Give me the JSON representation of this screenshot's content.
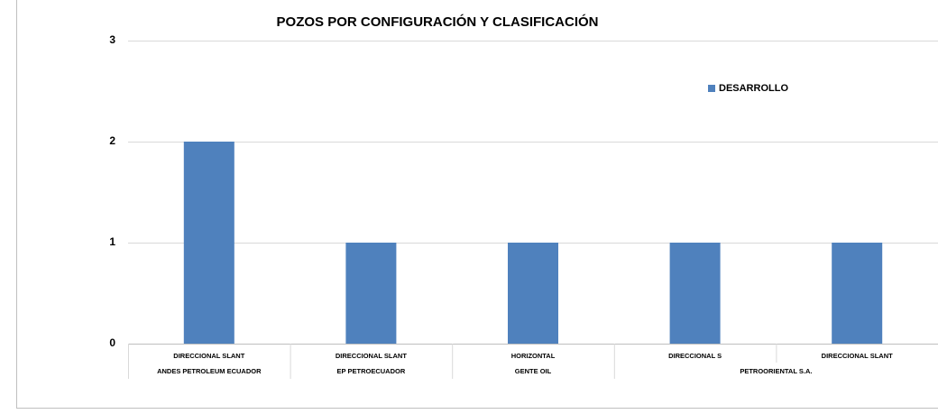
{
  "chart_data": {
    "type": "bar",
    "title": "POZOS POR CONFIGURACIÓN Y CLASIFICACIÓN",
    "groups": [
      {
        "name": "ANDES PETROLEUM ECUADOR",
        "categories": [
          "DIRECCIONAL SLANT"
        ]
      },
      {
        "name": "EP PETROECUADOR",
        "categories": [
          "DIRECCIONAL SLANT"
        ]
      },
      {
        "name": "GENTE OIL",
        "categories": [
          "HORIZONTAL"
        ]
      },
      {
        "name": "PETROORIENTAL S.A.",
        "categories": [
          "DIRECCIONAL S",
          "DIRECCIONAL SLANT"
        ]
      }
    ],
    "series": [
      {
        "name": "DESARROLLO",
        "color": "#4f81bd",
        "values": [
          2,
          1,
          1,
          1,
          1
        ]
      }
    ],
    "ylim": [
      0,
      3
    ],
    "yticks": [
      0,
      1,
      2,
      3
    ],
    "grid": true,
    "legend": "top-right"
  }
}
